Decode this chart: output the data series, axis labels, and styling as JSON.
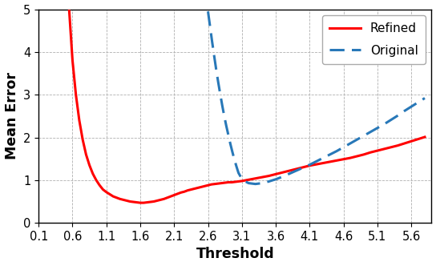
{
  "title": "",
  "xlabel": "Threshold",
  "ylabel": "Mean Error",
  "xlim": [
    0.1,
    5.9
  ],
  "ylim": [
    0,
    5
  ],
  "xticks": [
    0.1,
    0.6,
    1.1,
    1.6,
    2.1,
    2.6,
    3.1,
    3.6,
    4.1,
    4.6,
    5.1,
    5.6
  ],
  "yticks": [
    0,
    1,
    2,
    3,
    4,
    5
  ],
  "refined_color": "#ff0000",
  "original_color": "#2878b8",
  "refined_label": "Refined",
  "original_label": "Original",
  "refined_x": [
    0.55,
    0.6,
    0.65,
    0.7,
    0.75,
    0.8,
    0.85,
    0.9,
    0.95,
    1.0,
    1.05,
    1.1,
    1.15,
    1.2,
    1.25,
    1.3,
    1.35,
    1.4,
    1.45,
    1.5,
    1.55,
    1.6,
    1.65,
    1.7,
    1.75,
    1.8,
    1.85,
    1.9,
    1.95,
    2.0,
    2.05,
    2.1,
    2.15,
    2.2,
    2.25,
    2.3,
    2.35,
    2.4,
    2.45,
    2.5,
    2.55,
    2.6,
    2.65,
    2.7,
    2.75,
    2.8,
    2.85,
    2.9,
    2.95,
    3.0,
    3.05,
    3.1,
    3.2,
    3.3,
    3.4,
    3.5,
    3.6,
    3.7,
    3.8,
    3.9,
    4.0,
    4.1,
    4.2,
    4.3,
    4.4,
    4.5,
    4.6,
    4.7,
    4.8,
    4.9,
    5.0,
    5.1,
    5.2,
    5.3,
    5.4,
    5.5,
    5.6,
    5.7,
    5.8
  ],
  "refined_y": [
    5.0,
    3.8,
    3.0,
    2.4,
    1.95,
    1.6,
    1.35,
    1.15,
    1.0,
    0.88,
    0.78,
    0.72,
    0.67,
    0.62,
    0.59,
    0.56,
    0.54,
    0.52,
    0.5,
    0.49,
    0.48,
    0.47,
    0.47,
    0.48,
    0.49,
    0.5,
    0.52,
    0.54,
    0.56,
    0.59,
    0.62,
    0.65,
    0.68,
    0.71,
    0.73,
    0.76,
    0.78,
    0.8,
    0.82,
    0.84,
    0.86,
    0.88,
    0.9,
    0.91,
    0.92,
    0.93,
    0.94,
    0.95,
    0.95,
    0.96,
    0.97,
    0.98,
    1.01,
    1.04,
    1.07,
    1.1,
    1.14,
    1.18,
    1.22,
    1.26,
    1.3,
    1.34,
    1.37,
    1.4,
    1.43,
    1.46,
    1.49,
    1.52,
    1.56,
    1.6,
    1.65,
    1.69,
    1.73,
    1.77,
    1.81,
    1.86,
    1.91,
    1.96,
    2.01
  ],
  "original_x": [
    2.6,
    2.63,
    2.66,
    2.69,
    2.72,
    2.75,
    2.78,
    2.81,
    2.84,
    2.87,
    2.9,
    2.93,
    2.96,
    2.99,
    3.02,
    3.05,
    3.1,
    3.15,
    3.2,
    3.3,
    3.4,
    3.5,
    3.6,
    3.7,
    3.8,
    3.9,
    4.0,
    4.1,
    4.2,
    4.3,
    4.4,
    4.5,
    4.6,
    4.7,
    4.8,
    4.9,
    5.0,
    5.1,
    5.2,
    5.3,
    5.4,
    5.5,
    5.6,
    5.7,
    5.8
  ],
  "original_y": [
    4.95,
    4.6,
    4.25,
    3.92,
    3.6,
    3.3,
    3.02,
    2.75,
    2.5,
    2.27,
    2.06,
    1.85,
    1.66,
    1.48,
    1.32,
    1.17,
    1.03,
    0.97,
    0.93,
    0.91,
    0.93,
    0.97,
    1.02,
    1.08,
    1.15,
    1.22,
    1.29,
    1.36,
    1.44,
    1.52,
    1.6,
    1.68,
    1.77,
    1.86,
    1.95,
    2.04,
    2.13,
    2.22,
    2.31,
    2.41,
    2.51,
    2.62,
    2.72,
    2.82,
    2.92
  ]
}
